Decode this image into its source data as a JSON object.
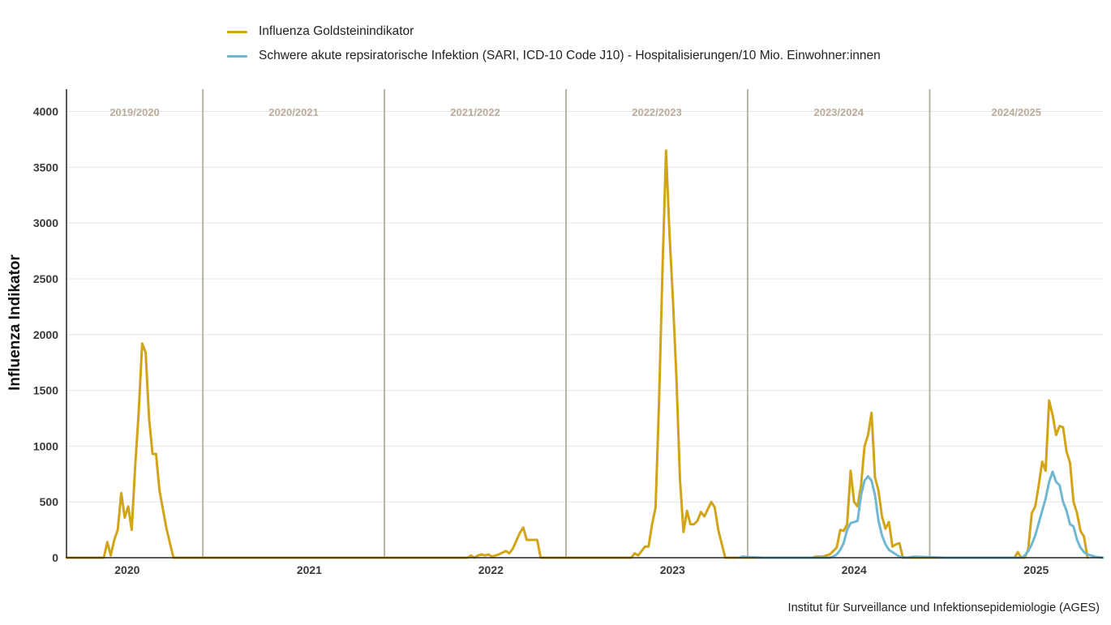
{
  "chart_data": {
    "type": "line",
    "ylabel": "Influenza Indikator",
    "source": "Institut für Surveillance und Infektionsepidemiologie (AGES)",
    "ylim": [
      0,
      4200
    ],
    "yticks": [
      0,
      500,
      1000,
      1500,
      2000,
      2500,
      3000,
      3500,
      4000
    ],
    "xlim": [
      "2019-09-01",
      "2025-05-15"
    ],
    "xticks": [
      {
        "label": "2020",
        "date": "2020-01-01"
      },
      {
        "label": "2021",
        "date": "2021-01-01"
      },
      {
        "label": "2022",
        "date": "2022-01-01"
      },
      {
        "label": "2023",
        "date": "2023-01-01"
      },
      {
        "label": "2024",
        "date": "2024-01-01"
      },
      {
        "label": "2025",
        "date": "2025-01-01"
      }
    ],
    "seasons": [
      {
        "label": "2019/2020",
        "end": "2020-06-01"
      },
      {
        "label": "2020/2021",
        "end": "2021-06-01"
      },
      {
        "label": "2021/2022",
        "end": "2022-06-01"
      },
      {
        "label": "2022/2023",
        "end": "2023-06-01"
      },
      {
        "label": "2023/2024",
        "end": "2024-06-01"
      },
      {
        "label": "2024/2025",
        "end": null
      }
    ],
    "grid": true,
    "legend_position": "top-left",
    "series": [
      {
        "name": "Influenza Goldsteinindikator",
        "color": "#d2a518",
        "points": [
          [
            "2019-09-01",
            0
          ],
          [
            "2019-11-15",
            0
          ],
          [
            "2019-11-22",
            140
          ],
          [
            "2019-11-29",
            20
          ],
          [
            "2019-12-06",
            160
          ],
          [
            "2019-12-13",
            250
          ],
          [
            "2019-12-20",
            580
          ],
          [
            "2019-12-27",
            360
          ],
          [
            "2020-01-03",
            460
          ],
          [
            "2020-01-10",
            250
          ],
          [
            "2020-01-17",
            820
          ],
          [
            "2020-01-24",
            1300
          ],
          [
            "2020-01-31",
            1920
          ],
          [
            "2020-02-07",
            1840
          ],
          [
            "2020-02-14",
            1250
          ],
          [
            "2020-02-21",
            930
          ],
          [
            "2020-02-28",
            930
          ],
          [
            "2020-03-06",
            600
          ],
          [
            "2020-03-20",
            260
          ],
          [
            "2020-04-03",
            0
          ],
          [
            "2021-11-15",
            0
          ],
          [
            "2021-11-22",
            20
          ],
          [
            "2021-11-29",
            0
          ],
          [
            "2021-12-06",
            20
          ],
          [
            "2021-12-13",
            30
          ],
          [
            "2021-12-20",
            20
          ],
          [
            "2021-12-27",
            30
          ],
          [
            "2022-01-03",
            10
          ],
          [
            "2022-01-17",
            30
          ],
          [
            "2022-01-31",
            60
          ],
          [
            "2022-02-07",
            40
          ],
          [
            "2022-02-14",
            80
          ],
          [
            "2022-02-28",
            220
          ],
          [
            "2022-03-07",
            270
          ],
          [
            "2022-03-14",
            160
          ],
          [
            "2022-04-04",
            160
          ],
          [
            "2022-04-11",
            0
          ],
          [
            "2022-10-10",
            0
          ],
          [
            "2022-10-17",
            40
          ],
          [
            "2022-10-24",
            20
          ],
          [
            "2022-11-07",
            100
          ],
          [
            "2022-11-14",
            100
          ],
          [
            "2022-11-21",
            300
          ],
          [
            "2022-11-28",
            450
          ],
          [
            "2022-12-05",
            1400
          ],
          [
            "2022-12-12",
            2600
          ],
          [
            "2022-12-19",
            3650
          ],
          [
            "2022-12-26",
            2900
          ],
          [
            "2023-01-02",
            2300
          ],
          [
            "2023-01-09",
            1600
          ],
          [
            "2023-01-16",
            700
          ],
          [
            "2023-01-23",
            230
          ],
          [
            "2023-01-30",
            420
          ],
          [
            "2023-02-06",
            300
          ],
          [
            "2023-02-13",
            300
          ],
          [
            "2023-02-20",
            330
          ],
          [
            "2023-02-27",
            410
          ],
          [
            "2023-03-06",
            370
          ],
          [
            "2023-03-20",
            500
          ],
          [
            "2023-03-27",
            450
          ],
          [
            "2023-04-03",
            250
          ],
          [
            "2023-04-17",
            0
          ],
          [
            "2023-10-09",
            0
          ],
          [
            "2023-10-16",
            10
          ],
          [
            "2023-10-30",
            10
          ],
          [
            "2023-11-06",
            20
          ],
          [
            "2023-11-13",
            30
          ],
          [
            "2023-11-20",
            60
          ],
          [
            "2023-11-27",
            90
          ],
          [
            "2023-12-04",
            250
          ],
          [
            "2023-12-11",
            240
          ],
          [
            "2023-12-18",
            300
          ],
          [
            "2023-12-25",
            780
          ],
          [
            "2024-01-01",
            500
          ],
          [
            "2024-01-08",
            460
          ],
          [
            "2024-01-15",
            650
          ],
          [
            "2024-01-22",
            1000
          ],
          [
            "2024-01-29",
            1100
          ],
          [
            "2024-02-05",
            1300
          ],
          [
            "2024-02-12",
            720
          ],
          [
            "2024-02-19",
            600
          ],
          [
            "2024-02-26",
            370
          ],
          [
            "2024-03-04",
            260
          ],
          [
            "2024-03-11",
            320
          ],
          [
            "2024-03-18",
            100
          ],
          [
            "2024-03-25",
            120
          ],
          [
            "2024-04-01",
            130
          ],
          [
            "2024-04-08",
            0
          ],
          [
            "2024-11-18",
            0
          ],
          [
            "2024-11-25",
            50
          ],
          [
            "2024-12-02",
            0
          ],
          [
            "2024-12-09",
            0
          ],
          [
            "2024-12-16",
            80
          ],
          [
            "2024-12-23",
            400
          ],
          [
            "2024-12-30",
            460
          ],
          [
            "2025-01-06",
            650
          ],
          [
            "2025-01-13",
            860
          ],
          [
            "2025-01-20",
            780
          ],
          [
            "2025-01-27",
            1410
          ],
          [
            "2025-02-03",
            1280
          ],
          [
            "2025-02-10",
            1100
          ],
          [
            "2025-02-17",
            1180
          ],
          [
            "2025-02-24",
            1170
          ],
          [
            "2025-03-03",
            950
          ],
          [
            "2025-03-10",
            850
          ],
          [
            "2025-03-17",
            500
          ],
          [
            "2025-03-24",
            400
          ],
          [
            "2025-03-31",
            240
          ],
          [
            "2025-04-07",
            190
          ],
          [
            "2025-04-14",
            0
          ]
        ]
      },
      {
        "name": "Schwere akute repsiratorische Infektion (SARI, ICD-10 Code J10) - Hospitalisierungen/10 Mio. Einwohner:innen",
        "color": "#6fb7d3",
        "points": [
          [
            "2023-05-15",
            0
          ],
          [
            "2023-05-22",
            10
          ],
          [
            "2023-06-05",
            5
          ],
          [
            "2023-07-03",
            0
          ],
          [
            "2023-11-13",
            0
          ],
          [
            "2023-11-20",
            10
          ],
          [
            "2023-11-27",
            30
          ],
          [
            "2023-12-04",
            70
          ],
          [
            "2023-12-11",
            130
          ],
          [
            "2023-12-18",
            250
          ],
          [
            "2023-12-25",
            310
          ],
          [
            "2024-01-01",
            320
          ],
          [
            "2024-01-08",
            330
          ],
          [
            "2024-01-15",
            560
          ],
          [
            "2024-01-22",
            690
          ],
          [
            "2024-01-29",
            730
          ],
          [
            "2024-02-05",
            690
          ],
          [
            "2024-02-12",
            560
          ],
          [
            "2024-02-19",
            330
          ],
          [
            "2024-02-26",
            200
          ],
          [
            "2024-03-04",
            120
          ],
          [
            "2024-03-11",
            70
          ],
          [
            "2024-03-18",
            50
          ],
          [
            "2024-03-25",
            30
          ],
          [
            "2024-04-01",
            10
          ],
          [
            "2024-04-15",
            0
          ],
          [
            "2024-05-01",
            10
          ],
          [
            "2024-06-01",
            5
          ],
          [
            "2024-07-01",
            0
          ],
          [
            "2024-12-02",
            0
          ],
          [
            "2024-12-09",
            20
          ],
          [
            "2024-12-16",
            60
          ],
          [
            "2024-12-23",
            120
          ],
          [
            "2024-12-30",
            200
          ],
          [
            "2025-01-06",
            310
          ],
          [
            "2025-01-13",
            420
          ],
          [
            "2025-01-20",
            530
          ],
          [
            "2025-01-27",
            680
          ],
          [
            "2025-02-03",
            770
          ],
          [
            "2025-02-10",
            680
          ],
          [
            "2025-02-17",
            650
          ],
          [
            "2025-02-24",
            500
          ],
          [
            "2025-03-03",
            420
          ],
          [
            "2025-03-10",
            300
          ],
          [
            "2025-03-17",
            280
          ],
          [
            "2025-03-24",
            160
          ],
          [
            "2025-03-31",
            90
          ],
          [
            "2025-04-07",
            50
          ],
          [
            "2025-04-14",
            30
          ],
          [
            "2025-04-21",
            20
          ],
          [
            "2025-04-28",
            10
          ],
          [
            "2025-05-15",
            0
          ]
        ]
      }
    ]
  }
}
